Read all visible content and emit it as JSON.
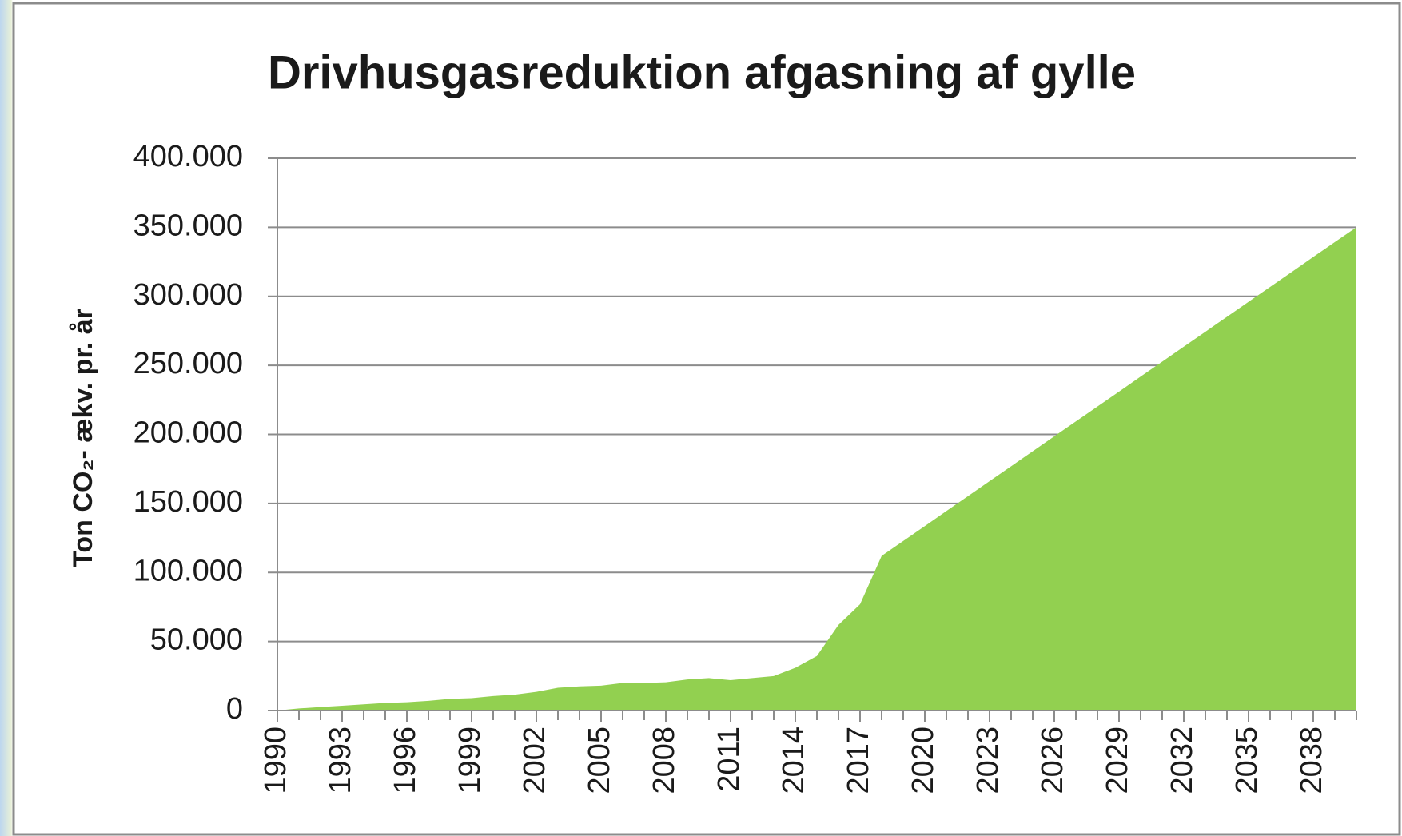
{
  "chart_data": {
    "type": "area",
    "title": "Drivhusgasreduktion afgasning af gylle",
    "y_label": "Ton CO₂- ækv. pr. år",
    "color": "#92d050",
    "grid": true,
    "x": [
      1990,
      1991,
      1992,
      1993,
      1994,
      1995,
      1996,
      1997,
      1998,
      1999,
      2000,
      2001,
      2002,
      2003,
      2004,
      2005,
      2006,
      2007,
      2008,
      2009,
      2010,
      2011,
      2012,
      2013,
      2014,
      2015,
      2016,
      2017,
      2018,
      2019,
      2020,
      2021,
      2022,
      2023,
      2024,
      2025,
      2026,
      2027,
      2028,
      2029,
      2030,
      2031,
      2032,
      2033,
      2034,
      2035,
      2036,
      2037,
      2038,
      2039,
      2040
    ],
    "values": [
      0,
      1500,
      2500,
      3500,
      4500,
      5500,
      6000,
      7000,
      8500,
      9000,
      10500,
      11500,
      13500,
      16500,
      17500,
      18000,
      20000,
      20000,
      20500,
      22500,
      23500,
      22000,
      23500,
      25000,
      31000,
      39500,
      62000,
      77000,
      112000,
      122800,
      133600,
      144500,
      155300,
      166100,
      176900,
      187800,
      198600,
      209400,
      220200,
      231000,
      241900,
      252700,
      263500,
      274300,
      285200,
      296000,
      306800,
      317600,
      328500,
      339300,
      350000
    ],
    "xlim": [
      1990,
      2040
    ],
    "xticks": [
      1990,
      1993,
      1996,
      1999,
      2002,
      2005,
      2008,
      2011,
      2014,
      2017,
      2020,
      2023,
      2026,
      2029,
      2032,
      2035,
      2038
    ],
    "ylim": [
      0,
      400000
    ],
    "yticks": [
      0,
      {
        "value": 50000,
        "label": "50.000"
      },
      {
        "value": 100000,
        "label": "100.000"
      },
      {
        "value": 150000,
        "label": "150.000"
      },
      {
        "value": 200000,
        "label": "200.000"
      },
      {
        "value": 250000,
        "label": "250.000"
      },
      {
        "value": 300000,
        "label": "300.000"
      },
      {
        "value": 350000,
        "label": "350.000"
      },
      {
        "value": 400000,
        "label": "400.000"
      }
    ]
  }
}
